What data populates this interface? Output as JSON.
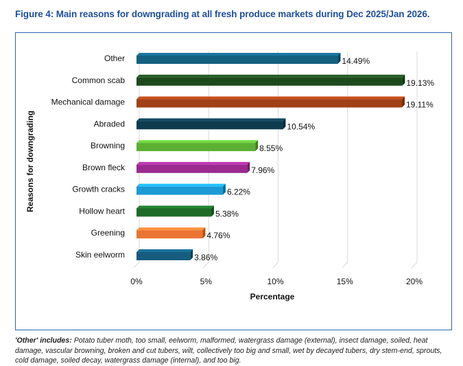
{
  "chart_data": {
    "type": "bar",
    "orientation": "horizontal",
    "title": "Figure 4: Main reasons for downgrading at all fresh produce markets during Dec 2025/Jan 2026.",
    "xlabel": "Percentage",
    "ylabel": "Reasons for downgrading",
    "xlim": [
      0,
      20
    ],
    "xticks": [
      "0%",
      "5%",
      "10%",
      "15%",
      "20%"
    ],
    "grid": true,
    "categories": [
      "Other",
      "Common scab",
      "Mechanical damage",
      "Abraded",
      "Browning",
      "Brown fleck",
      "Growth cracks",
      "Hollow heart",
      "Greening",
      "Skin eelworm"
    ],
    "values": [
      14.49,
      19.13,
      19.11,
      10.54,
      8.55,
      7.96,
      6.22,
      5.38,
      4.76,
      3.86
    ],
    "labels": [
      "14.49%",
      "19.13%",
      "19.11%",
      "10.54%",
      "8.55%",
      "7.96%",
      "6.22%",
      "5.38%",
      "4.76%",
      "3.86%"
    ],
    "colors": [
      "#13607f",
      "#1d4a1c",
      "#a04118",
      "#0f3b4f",
      "#5bb033",
      "#9a2a8f",
      "#1b9ad5",
      "#1e6b28",
      "#ec7431",
      "#165c7e"
    ]
  },
  "note": {
    "lead": "'Other' includes:",
    "text": " Potato tuber moth, too small, eelworm, malformed, watergrass damage (external), insect damage, soiled, heat damage, vascular browning, broken and cut tubers, wilt, collectively too big and small, wet by decayed tubers, dry stem-end, sprouts, cold damage, soiled decay, watergrass damage (internal), and too big."
  }
}
